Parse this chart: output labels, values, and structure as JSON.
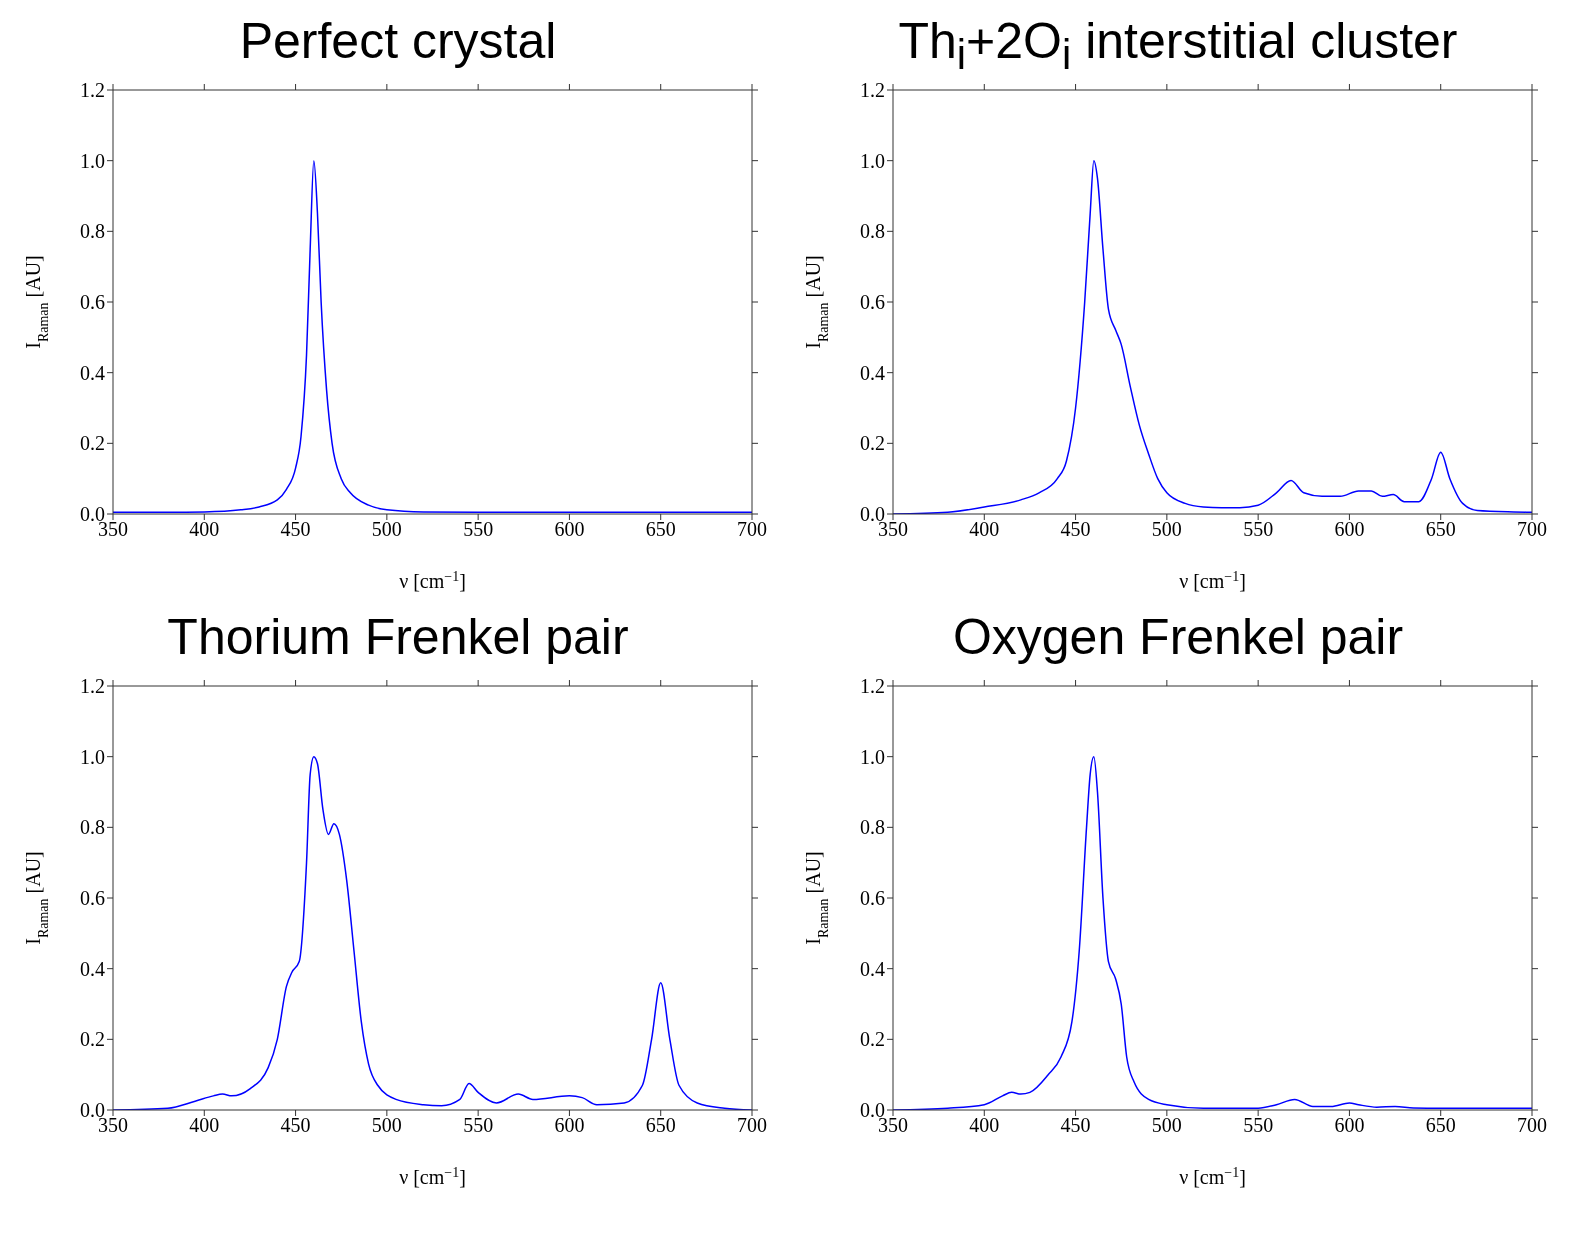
{
  "chart_data": [
    {
      "type": "line",
      "title": "Perfect crystal",
      "xlabel": "ν [cm$^{−1}$]",
      "ylabel": "I$_{Raman}$ [AU]",
      "color": "#0000ff",
      "grid": false,
      "legend": false,
      "marker": "none",
      "line_style": "solid",
      "xlim": [
        350,
        700
      ],
      "ylim": [
        0,
        1.2
      ],
      "xticks": [
        350,
        400,
        450,
        500,
        550,
        600,
        650,
        700
      ],
      "yticks": [
        {
          "value": 0,
          "label": "0.0"
        },
        {
          "value": 0.2,
          "label": "0.2"
        },
        {
          "value": 0.4,
          "label": "0.4"
        },
        {
          "value": 0.6,
          "label": "0.6"
        },
        {
          "value": 0.8,
          "label": "0.8"
        },
        {
          "value": 1,
          "label": "1.0"
        },
        {
          "value": 1.2,
          "label": "1.2"
        }
      ],
      "x": [
        350,
        380,
        400,
        420,
        430,
        440,
        445,
        450,
        453,
        456,
        458,
        460,
        462,
        464,
        467,
        470,
        475,
        480,
        490,
        500,
        520,
        550,
        600,
        700
      ],
      "values": [
        0.005,
        0.005,
        0.006,
        0.012,
        0.02,
        0.04,
        0.07,
        0.13,
        0.22,
        0.45,
        0.75,
        1.0,
        0.85,
        0.6,
        0.35,
        0.2,
        0.1,
        0.06,
        0.025,
        0.012,
        0.006,
        0.005,
        0.005,
        0.005
      ]
    },
    {
      "type": "line",
      "title": "Th$_{i}$+2O$_{i}$ interstitial cluster",
      "xlabel": "ν [cm$^{−1}$]",
      "ylabel": "I$_{Raman}$ [AU]",
      "color": "#0000ff",
      "grid": false,
      "legend": false,
      "marker": "none",
      "line_style": "solid",
      "xlim": [
        350,
        700
      ],
      "ylim": [
        0,
        1.2
      ],
      "xticks": [
        350,
        400,
        450,
        500,
        550,
        600,
        650,
        700
      ],
      "yticks": [
        {
          "value": 0,
          "label": "0.0"
        },
        {
          "value": 0.2,
          "label": "0.2"
        },
        {
          "value": 0.4,
          "label": "0.4"
        },
        {
          "value": 0.6,
          "label": "0.6"
        },
        {
          "value": 0.8,
          "label": "0.8"
        },
        {
          "value": 1,
          "label": "1.0"
        },
        {
          "value": 1.2,
          "label": "1.2"
        }
      ],
      "x": [
        350,
        380,
        400,
        420,
        430,
        440,
        445,
        450,
        455,
        458,
        460,
        462,
        465,
        468,
        472,
        475,
        480,
        485,
        490,
        495,
        500,
        510,
        520,
        530,
        540,
        550,
        560,
        568,
        575,
        585,
        595,
        605,
        612,
        618,
        624,
        630,
        638,
        645,
        650,
        655,
        662,
        670,
        690,
        700
      ],
      "values": [
        0,
        0.005,
        0.02,
        0.04,
        0.06,
        0.1,
        0.15,
        0.3,
        0.6,
        0.85,
        1.0,
        0.95,
        0.75,
        0.58,
        0.52,
        0.48,
        0.36,
        0.25,
        0.17,
        0.1,
        0.06,
        0.03,
        0.02,
        0.018,
        0.018,
        0.025,
        0.06,
        0.095,
        0.06,
        0.05,
        0.05,
        0.065,
        0.065,
        0.05,
        0.055,
        0.035,
        0.035,
        0.1,
        0.175,
        0.1,
        0.03,
        0.01,
        0.006,
        0.005
      ]
    },
    {
      "type": "line",
      "title": "Thorium Frenkel pair",
      "xlabel": "ν [cm$^{−1}$]",
      "ylabel": "I$_{Raman}$ [AU]",
      "color": "#0000ff",
      "grid": false,
      "legend": false,
      "marker": "none",
      "line_style": "solid",
      "xlim": [
        350,
        700
      ],
      "ylim": [
        0,
        1.2
      ],
      "xticks": [
        350,
        400,
        450,
        500,
        550,
        600,
        650,
        700
      ],
      "yticks": [
        {
          "value": 0,
          "label": "0.0"
        },
        {
          "value": 0.2,
          "label": "0.2"
        },
        {
          "value": 0.4,
          "label": "0.4"
        },
        {
          "value": 0.6,
          "label": "0.6"
        },
        {
          "value": 0.8,
          "label": "0.8"
        },
        {
          "value": 1,
          "label": "1.0"
        },
        {
          "value": 1.2,
          "label": "1.2"
        }
      ],
      "x": [
        350,
        380,
        395,
        405,
        410,
        415,
        425,
        435,
        440,
        445,
        448,
        452,
        456,
        458,
        460,
        462,
        465,
        468,
        471,
        474,
        478,
        482,
        486,
        490,
        495,
        505,
        520,
        530,
        540,
        545,
        550,
        560,
        572,
        580,
        600,
        607,
        615,
        630,
        640,
        645,
        650,
        655,
        660,
        670,
        685,
        700
      ],
      "values": [
        0,
        0.005,
        0.025,
        0.04,
        0.045,
        0.04,
        0.06,
        0.12,
        0.2,
        0.35,
        0.39,
        0.42,
        0.7,
        0.95,
        1.0,
        0.98,
        0.85,
        0.78,
        0.81,
        0.78,
        0.65,
        0.45,
        0.25,
        0.13,
        0.07,
        0.03,
        0.015,
        0.012,
        0.03,
        0.075,
        0.05,
        0.02,
        0.045,
        0.03,
        0.04,
        0.035,
        0.015,
        0.02,
        0.07,
        0.2,
        0.36,
        0.2,
        0.07,
        0.02,
        0.005,
        0
      ]
    },
    {
      "type": "line",
      "title": "Oxygen Frenkel pair",
      "xlabel": "ν [cm$^{−1}$]",
      "ylabel": "I$_{Raman}$ [AU]",
      "color": "#0000ff",
      "grid": false,
      "legend": false,
      "marker": "none",
      "line_style": "solid",
      "xlim": [
        350,
        700
      ],
      "ylim": [
        0,
        1.2
      ],
      "xticks": [
        350,
        400,
        450,
        500,
        550,
        600,
        650,
        700
      ],
      "yticks": [
        {
          "value": 0,
          "label": "0.0"
        },
        {
          "value": 0.2,
          "label": "0.2"
        },
        {
          "value": 0.4,
          "label": "0.4"
        },
        {
          "value": 0.6,
          "label": "0.6"
        },
        {
          "value": 0.8,
          "label": "0.8"
        },
        {
          "value": 1,
          "label": "1.0"
        },
        {
          "value": 1.2,
          "label": "1.2"
        }
      ],
      "x": [
        350,
        380,
        400,
        410,
        415,
        420,
        425,
        435,
        442,
        448,
        452,
        456,
        458,
        460,
        462,
        465,
        468,
        472,
        475,
        478,
        482,
        490,
        500,
        520,
        550,
        560,
        570,
        580,
        590,
        600,
        605,
        615,
        625,
        635,
        650,
        700
      ],
      "values": [
        0,
        0.005,
        0.015,
        0.04,
        0.05,
        0.045,
        0.05,
        0.1,
        0.15,
        0.25,
        0.45,
        0.8,
        0.95,
        1.0,
        0.9,
        0.6,
        0.42,
        0.37,
        0.3,
        0.15,
        0.08,
        0.03,
        0.015,
        0.005,
        0.005,
        0.015,
        0.03,
        0.01,
        0.01,
        0.02,
        0.015,
        0.008,
        0.01,
        0.006,
        0.005,
        0.005
      ]
    }
  ]
}
